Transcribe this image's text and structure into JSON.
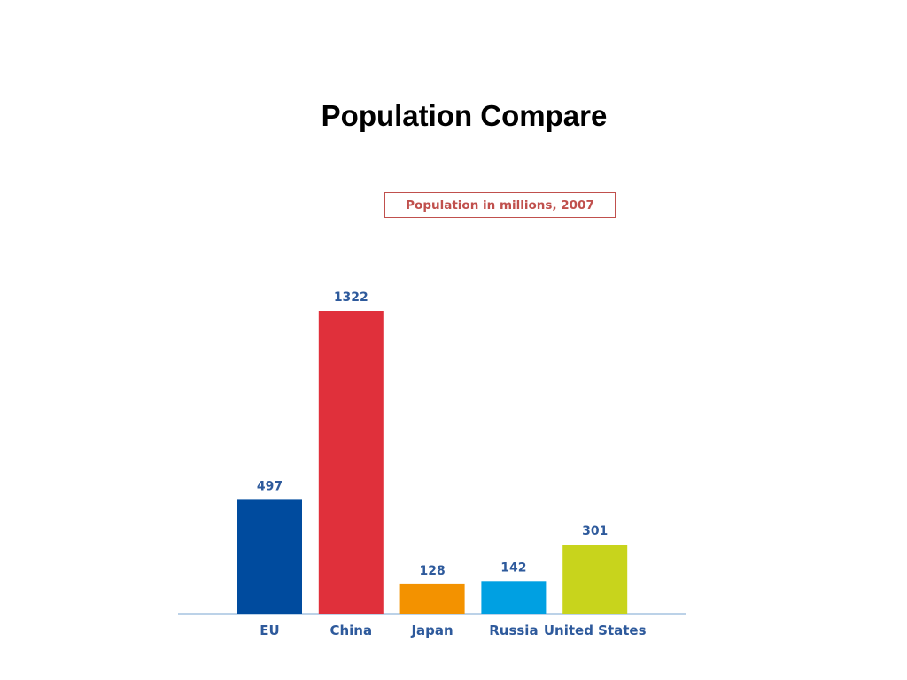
{
  "slide": {
    "title": "Population Compare"
  },
  "chart_data": {
    "type": "bar",
    "title": "Population in millions, 2007",
    "categories": [
      "EU",
      "China",
      "Japan",
      "Russia",
      "United States"
    ],
    "values": [
      497,
      1322,
      128,
      142,
      301
    ],
    "colors": [
      "#004b9e",
      "#e0303b",
      "#f39200",
      "#00a0e2",
      "#c8d41c"
    ],
    "label_color": "#2e5a9c",
    "axis_color": "#7aa6d2",
    "xlabel": "",
    "ylabel": "",
    "ylim": [
      0,
      1322
    ],
    "grid": false
  }
}
